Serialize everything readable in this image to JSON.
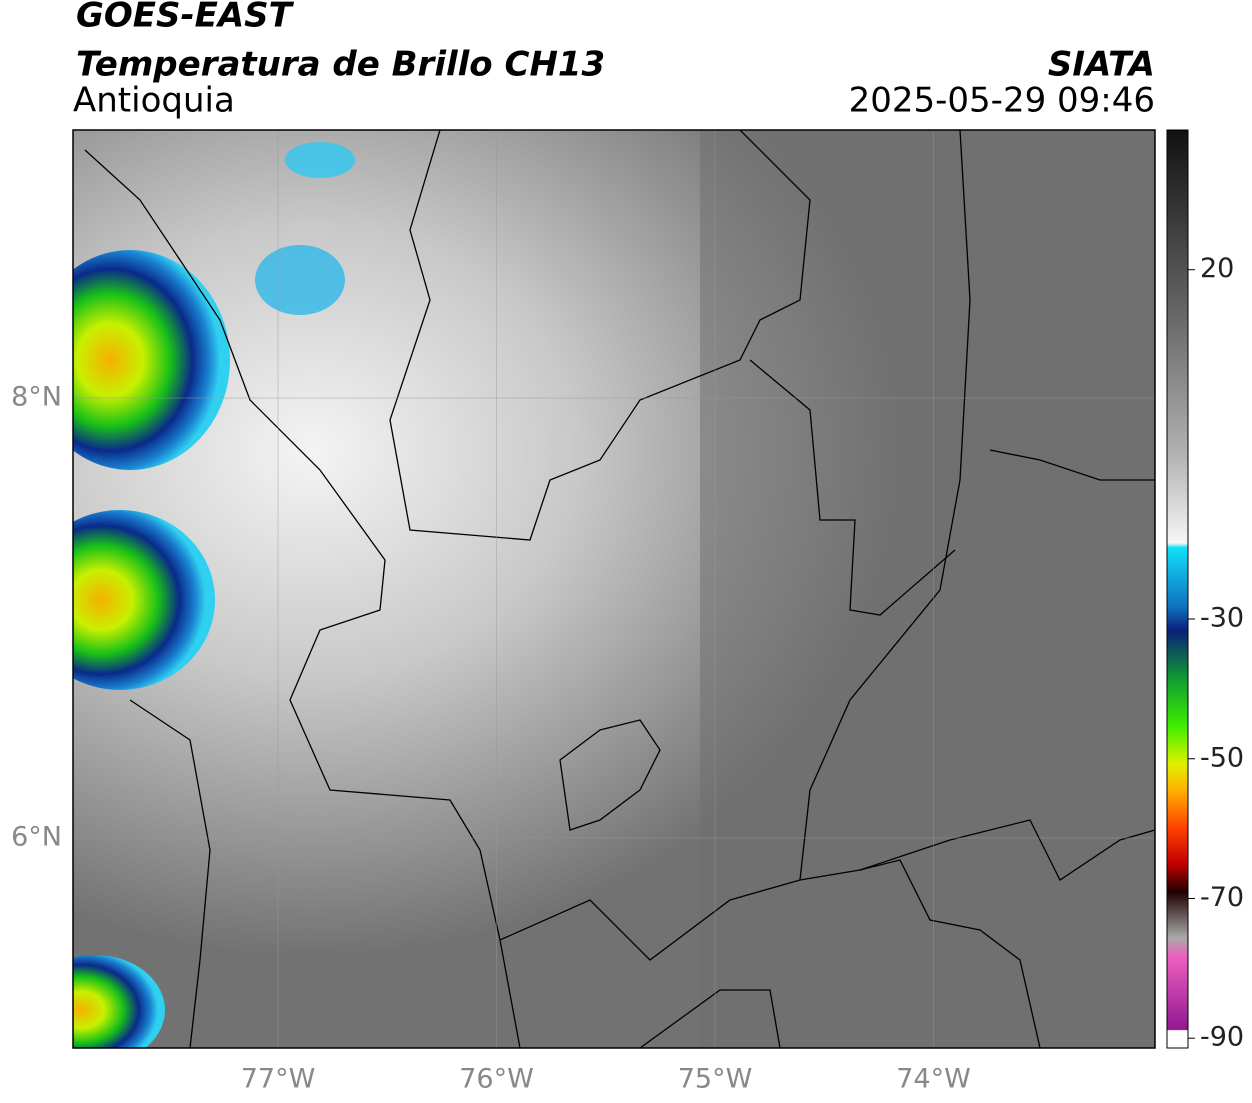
{
  "header": {
    "title": "GOES-EAST",
    "subtitle": "Temperatura de Brillo CH13",
    "region": "Antioquia",
    "source": "SIATA",
    "datetime": "2025-05-29 09:46"
  },
  "map": {
    "lat_ticks": [
      {
        "value": 8,
        "label": "8°N"
      },
      {
        "value": 6,
        "label": "6°N"
      }
    ],
    "lon_ticks": [
      {
        "value": -77,
        "label": "77°W"
      },
      {
        "value": -76,
        "label": "76°W"
      },
      {
        "value": -75,
        "label": "75°W"
      },
      {
        "value": -74,
        "label": "74°W"
      }
    ]
  },
  "colorbar": {
    "range": [
      -91.4,
      40
    ],
    "ticks": [
      20,
      -30,
      -50,
      -70,
      -90
    ]
  }
}
